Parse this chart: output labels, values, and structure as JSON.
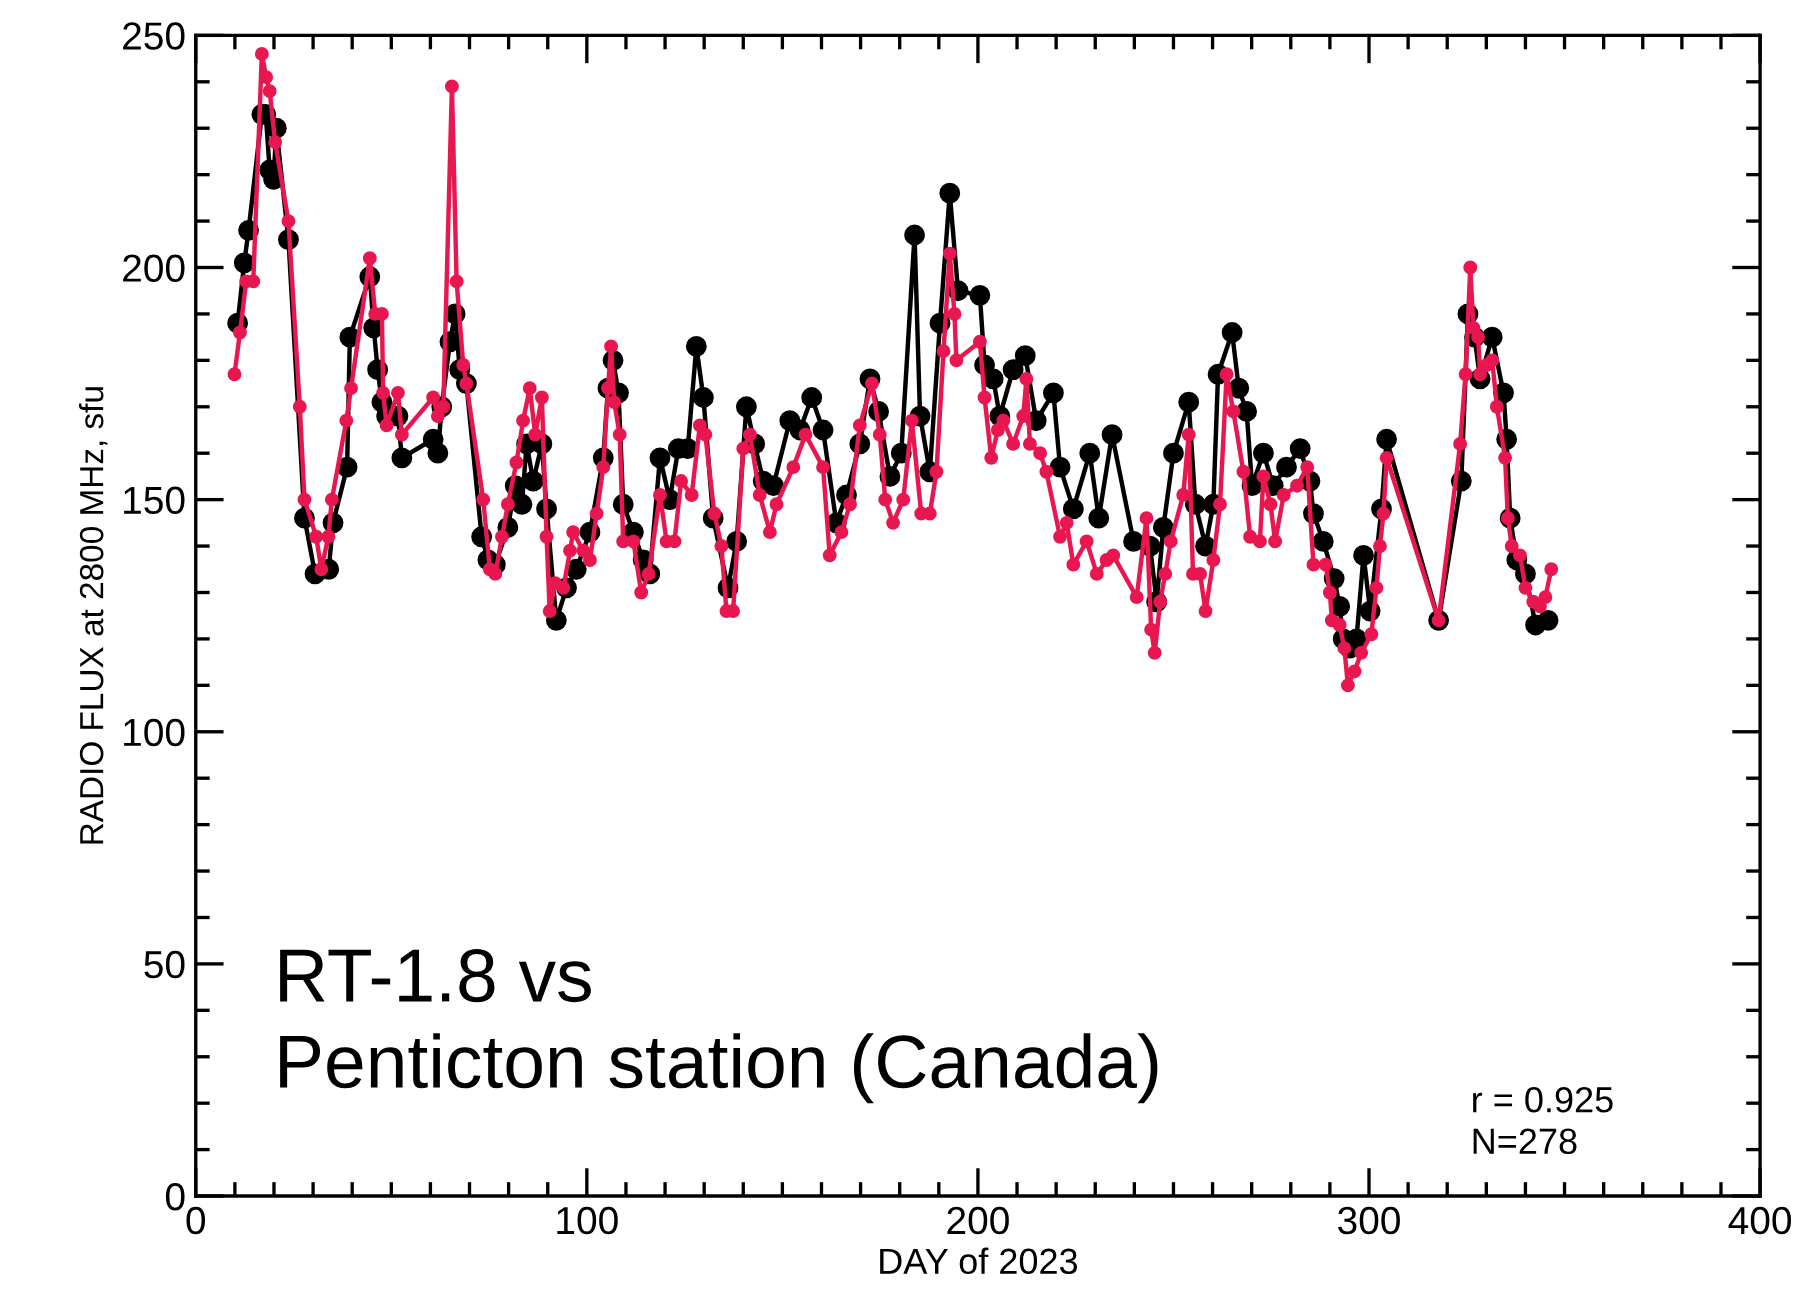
{
  "chart_data": {
    "type": "line",
    "xlabel": "DAY of 2023",
    "ylabel": "RADIO FLUX at 2800 MHz, sfu",
    "annotations": [
      "RT-1.8 vs\nPenticton station (Canada)",
      "r = 0.925\nN=278"
    ],
    "xlim": [
      0,
      400
    ],
    "xticks": [
      0,
      100,
      200,
      300,
      400
    ],
    "ylim": [
      0,
      250
    ],
    "yticks": [
      0,
      50,
      100,
      150,
      200,
      250
    ],
    "grid": false,
    "legend": false,
    "marker": "circle",
    "line_style": "solid",
    "series": [
      {
        "color": "#000000",
        "x": [
          10.7,
          12.4,
          13.5,
          16.9,
          17.9,
          18.9,
          19.9,
          20.6,
          23.7,
          27.8,
          30.5,
          34,
          35.1,
          38.7,
          39.4,
          44.5,
          45.5,
          46.5,
          47.6,
          48.8,
          51.7,
          52.7,
          60.7,
          61.9,
          62.9,
          65,
          66.3,
          67.5,
          69.2,
          73.1,
          74.7,
          76.6,
          79.8,
          81.7,
          83.4,
          84.6,
          86.3,
          88.5,
          89.7,
          92.2,
          94.8,
          97.3,
          100.8,
          104.2,
          105.4,
          106.7,
          108.1,
          109.3,
          111.9,
          114.4,
          116.1,
          118.7,
          121.2,
          123.4,
          125.8,
          128,
          129.8,
          132.3,
          136.1,
          138.3,
          140.8,
          142.9,
          145.1,
          147.7,
          151.9,
          154.5,
          157.5,
          160.4,
          163.8,
          166.4,
          169.8,
          172.4,
          174.6,
          177.5,
          180.4,
          183.8,
          185.2,
          187.7,
          190.3,
          192.8,
          194.9,
          200.5,
          201.7,
          203.9,
          205.6,
          209,
          212.1,
          214.9,
          219.3,
          221,
          224.4,
          228.6,
          230.9,
          234.3,
          239.8,
          244,
          245.7,
          247.4,
          250,
          253.9,
          255.6,
          258.2,
          260.2,
          261.4,
          265,
          266.7,
          268.7,
          270.1,
          273,
          275.5,
          278.9,
          282.4,
          284.9,
          285.8,
          288.3,
          291.1,
          292.5,
          293.4,
          295.1,
          296.8,
          298.6,
          300.3,
          303.2,
          304.5,
          317.8,
          323.6,
          325.3,
          327,
          328.4,
          331.5,
          334.4,
          335.2,
          336.1,
          337.8,
          340,
          342.6,
          345.8
        ],
        "values": [
          188,
          201,
          208,
          233,
          233,
          221,
          219,
          230,
          206,
          146,
          134,
          135,
          145,
          157,
          185,
          198,
          187,
          178,
          171,
          168,
          168,
          159,
          163,
          160,
          170,
          184,
          190,
          178,
          175,
          142,
          137,
          136,
          144,
          153,
          149,
          162,
          154,
          162,
          148,
          124,
          131,
          135,
          143,
          159,
          174,
          180,
          173,
          149,
          143,
          137,
          134,
          159,
          150,
          161,
          161,
          183,
          172,
          146,
          131,
          141,
          170,
          162,
          154,
          153,
          167,
          165,
          172,
          165,
          145,
          151,
          162,
          176,
          169,
          155,
          160,
          207,
          168,
          156,
          188,
          216,
          195,
          194,
          179,
          176,
          168,
          178,
          181,
          167,
          173,
          157,
          148,
          160,
          146,
          164,
          141,
          140,
          128,
          144,
          160,
          171,
          149,
          140,
          149,
          177,
          186,
          174,
          169,
          153,
          160,
          153,
          157,
          161,
          154,
          147,
          141,
          133,
          127,
          120,
          118,
          120,
          138,
          126,
          148,
          163,
          124,
          154,
          190,
          185,
          176,
          185,
          173,
          163,
          146,
          137,
          134,
          123,
          124
        ]
      },
      {
        "color": "#e8174f",
        "x": [
          9.9,
          11.3,
          12.9,
          14.7,
          16.9,
          18,
          18.9,
          20.3,
          23.7,
          26.6,
          27.8,
          30.8,
          32.1,
          33.9,
          34.8,
          38.5,
          39.7,
          44.5,
          45.9,
          47.6,
          47.9,
          48.8,
          51.7,
          52.7,
          60.7,
          61.9,
          63.3,
          65.5,
          66.7,
          68.4,
          69.2,
          73.5,
          75.2,
          76.6,
          78.3,
          79.8,
          82,
          83.7,
          85.4,
          86.8,
          88.5,
          89.7,
          90.5,
          91.9,
          94,
          95.7,
          96.5,
          99.1,
          100.8,
          102.5,
          104.2,
          105.4,
          106.2,
          107,
          108.4,
          109.3,
          111.9,
          113.9,
          115.8,
          118.7,
          120.4,
          122.4,
          124.1,
          126.8,
          128.9,
          130.3,
          132.6,
          134.4,
          135.7,
          137.4,
          140,
          141.7,
          144.2,
          146.8,
          148.5,
          152.8,
          155.9,
          160.4,
          162.1,
          165.1,
          167.3,
          169.8,
          172.9,
          174.9,
          176.3,
          178.3,
          180.9,
          183.1,
          185.5,
          187.7,
          189.4,
          191.2,
          192.8,
          194,
          194.5,
          200.5,
          201.7,
          203.4,
          205.1,
          206.5,
          209,
          211.6,
          212.4,
          213.3,
          215.9,
          217.5,
          221,
          222.7,
          224.4,
          227.8,
          230.4,
          232.9,
          234.6,
          240.6,
          243.1,
          244.3,
          245.2,
          246.6,
          247.9,
          249.3,
          252.5,
          253.9,
          255,
          256.8,
          258.2,
          260.2,
          261.9,
          263.6,
          265.3,
          267.9,
          269.6,
          272.1,
          273,
          274.8,
          276,
          278.2,
          281.6,
          284.2,
          285.8,
          288.9,
          290,
          290.5,
          292.5,
          293.7,
          294.6,
          296.3,
          298,
          300.6,
          301.9,
          302.8,
          303.7,
          304.5,
          317.8,
          323.3,
          324.7,
          325.9,
          326.7,
          327.9,
          328.4,
          330.1,
          331.5,
          332.7,
          334.8,
          335.5,
          336.5,
          338.6,
          340,
          342,
          343.7,
          345.1,
          346.6
        ],
        "values": [
          177,
          186,
          197,
          197,
          246,
          241,
          238,
          227,
          210,
          170,
          150,
          142,
          135,
          142,
          150,
          167,
          174,
          202,
          190,
          190,
          173,
          166,
          173,
          164,
          172,
          168,
          170,
          239,
          197,
          179,
          175,
          150,
          135,
          134,
          142,
          149,
          158,
          167,
          174,
          164,
          172,
          142,
          126,
          132,
          131,
          139,
          143,
          139,
          137,
          147,
          157,
          174,
          183,
          171,
          164,
          141,
          141,
          130,
          134,
          151,
          141,
          141,
          154,
          151,
          166,
          164,
          147,
          140,
          126,
          126,
          161,
          164,
          151,
          143,
          149,
          157,
          164,
          157,
          138,
          143,
          149,
          166,
          175,
          164,
          150,
          145,
          150,
          167,
          147,
          147,
          156,
          182,
          203,
          190,
          180,
          184,
          172,
          159,
          165,
          167,
          162,
          168,
          176,
          162,
          160,
          156,
          142,
          145,
          136,
          141,
          134,
          137,
          138,
          129,
          146,
          122,
          117,
          128,
          134,
          141,
          151,
          164,
          134,
          134,
          126,
          137,
          149,
          177,
          169,
          156,
          142,
          141,
          155,
          149,
          141,
          151,
          153,
          157,
          136,
          136,
          130,
          124,
          123,
          118,
          110,
          113,
          117,
          121,
          131,
          140,
          147,
          159,
          124,
          162,
          177,
          200,
          187,
          185,
          177,
          179,
          180,
          170,
          159,
          146,
          140,
          138,
          131,
          128,
          127,
          129,
          135
        ]
      }
    ]
  }
}
